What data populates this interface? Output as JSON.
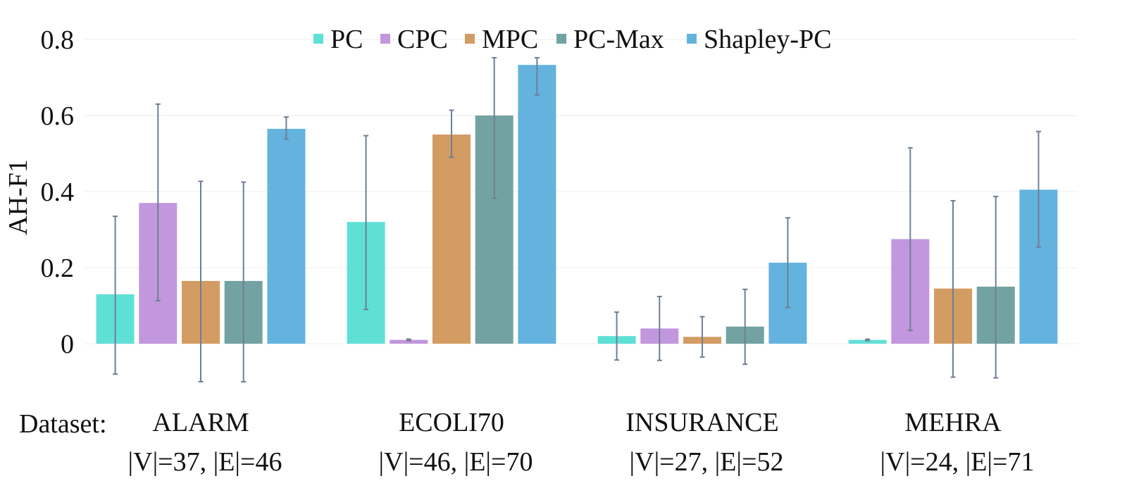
{
  "chart_data": {
    "type": "bar",
    "ylabel": "AH-F1",
    "xlabel": "Dataset:",
    "ylim": [
      -0.12,
      0.82
    ],
    "yticks": [
      0,
      0.2,
      0.4,
      0.6,
      0.8
    ],
    "ytick_labels": [
      "0",
      "0.2",
      "0.4",
      "0.6",
      "0.8"
    ],
    "grid": true,
    "legend_position": "top-center",
    "categories": [
      "ALARM",
      "ECOLI70",
      "INSURANCE",
      "MEHRA"
    ],
    "category_details": [
      "|V|=37, |E|=46",
      "|V|=46, |E|=70",
      "|V|=27, |E|=52",
      "|V|=24, |E|=71"
    ],
    "series": [
      {
        "name": "PC",
        "color": "#5fe0d6",
        "values": [
          0.13,
          0.32,
          0.02,
          0.01
        ],
        "err_low": [
          -0.08,
          0.09,
          -0.043,
          0.008
        ],
        "err_high": [
          0.335,
          0.547,
          0.083,
          0.012
        ]
      },
      {
        "name": "CPC",
        "color": "#c297de",
        "values": [
          0.37,
          0.01,
          0.04,
          0.275
        ],
        "err_low": [
          0.113,
          0.008,
          -0.044,
          0.035
        ],
        "err_high": [
          0.63,
          0.012,
          0.124,
          0.515
        ]
      },
      {
        "name": "MPC",
        "color": "#d39c62",
        "values": [
          0.165,
          0.55,
          0.018,
          0.145
        ],
        "err_low": [
          -0.1,
          0.49,
          -0.035,
          -0.088
        ],
        "err_high": [
          0.427,
          0.614,
          0.071,
          0.376
        ]
      },
      {
        "name": "PC-Max",
        "color": "#73a2a2",
        "values": [
          0.165,
          0.6,
          0.045,
          0.15
        ],
        "err_low": [
          -0.1,
          0.382,
          -0.054,
          -0.09
        ],
        "err_high": [
          0.425,
          0.752,
          0.143,
          0.387
        ]
      },
      {
        "name": "Shapley-PC",
        "color": "#64b3de",
        "values": [
          0.565,
          0.733,
          0.213,
          0.405
        ],
        "err_low": [
          0.538,
          0.654,
          0.095,
          0.254
        ],
        "err_high": [
          0.596,
          0.752,
          0.331,
          0.558
        ]
      }
    ]
  }
}
